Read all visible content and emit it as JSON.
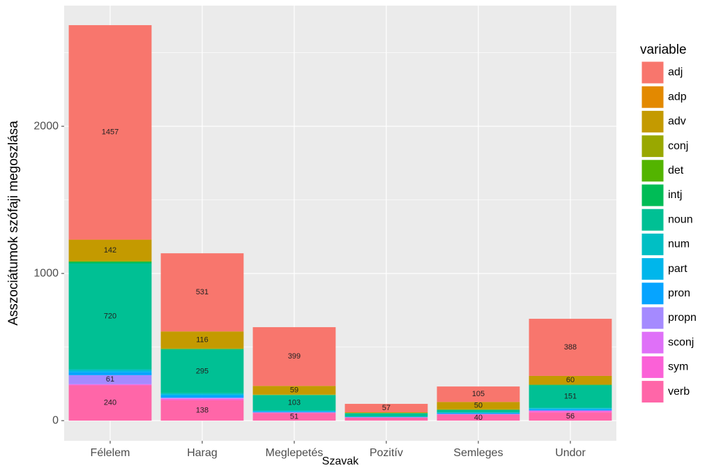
{
  "chart_data": {
    "type": "stacked_bar",
    "x_label": "Szavak",
    "y_label": "Asszociátumok szófaji megoszlása",
    "legend_title": "variable",
    "categories": [
      "Félelem",
      "Harag",
      "Meglepetés",
      "Pozitív",
      "Semleges",
      "Undor"
    ],
    "series": [
      {
        "name": "adj",
        "color": "#F8766D",
        "values": [
          1457,
          531,
          399,
          57,
          105,
          388
        ]
      },
      {
        "name": "adp",
        "color": "#E38900",
        "values": [
          2,
          0,
          0,
          0,
          0,
          0
        ]
      },
      {
        "name": "adv",
        "color": "#C49A00",
        "values": [
          142,
          116,
          59,
          5,
          50,
          60
        ]
      },
      {
        "name": "conj",
        "color": "#99A800",
        "values": [
          5,
          3,
          2,
          0,
          3,
          0
        ]
      },
      {
        "name": "det",
        "color": "#53B400",
        "values": [
          2,
          0,
          0,
          0,
          0,
          0
        ]
      },
      {
        "name": "intj",
        "color": "#00BC56",
        "values": [
          10,
          5,
          3,
          3,
          2,
          5
        ]
      },
      {
        "name": "noun",
        "color": "#00C094",
        "values": [
          720,
          295,
          103,
          20,
          15,
          151
        ]
      },
      {
        "name": "num",
        "color": "#00BFC4",
        "values": [
          10,
          8,
          4,
          3,
          4,
          6
        ]
      },
      {
        "name": "part",
        "color": "#00B6EB",
        "values": [
          10,
          8,
          4,
          0,
          3,
          5
        ]
      },
      {
        "name": "pron",
        "color": "#06A4FF",
        "values": [
          20,
          15,
          5,
          3,
          5,
          8
        ]
      },
      {
        "name": "propn",
        "color": "#A58AFF",
        "values": [
          61,
          5,
          0,
          0,
          0,
          0
        ]
      },
      {
        "name": "sconj",
        "color": "#DF70F8",
        "values": [
          3,
          3,
          0,
          0,
          0,
          3
        ]
      },
      {
        "name": "sym",
        "color": "#FB61D7",
        "values": [
          5,
          10,
          5,
          3,
          5,
          10
        ]
      },
      {
        "name": "verb",
        "color": "#FF66A8",
        "values": [
          240,
          138,
          51,
          20,
          40,
          56
        ]
      }
    ],
    "ylim": [
      -137,
      2820
    ],
    "yticks": [
      0,
      1000,
      2000
    ],
    "grid": true
  }
}
